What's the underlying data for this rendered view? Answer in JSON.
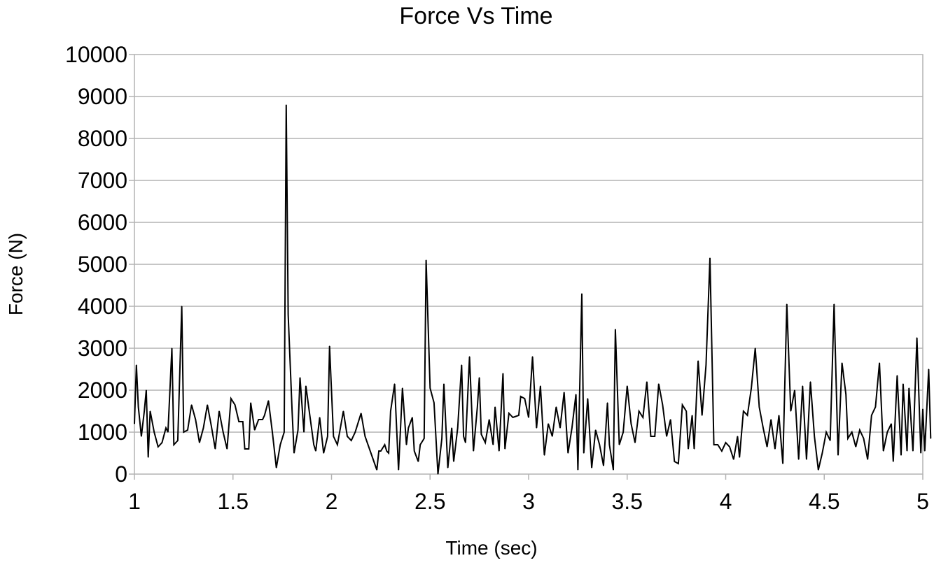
{
  "chart_data": {
    "type": "line",
    "title": "Force Vs Time",
    "xlabel": "Time (sec)",
    "ylabel": "Force (N)",
    "xlim": [
      1,
      5
    ],
    "ylim": [
      0,
      10000
    ],
    "x_ticks": [
      "1",
      "1.5",
      "2",
      "2.5",
      "3",
      "3.5",
      "4",
      "4.5",
      "5"
    ],
    "y_ticks": [
      "0",
      "1000",
      "2000",
      "3000",
      "4000",
      "5000",
      "6000",
      "7000",
      "8000",
      "9000",
      "10000"
    ],
    "grid": true,
    "legend": "none",
    "series": [
      {
        "color": "#000000",
        "points": [
          [
            1.0,
            1200
          ],
          [
            1.01,
            2600
          ],
          [
            1.02,
            1600
          ],
          [
            1.035,
            900
          ],
          [
            1.05,
            1500
          ],
          [
            1.06,
            2000
          ],
          [
            1.07,
            400
          ],
          [
            1.08,
            1500
          ],
          [
            1.1,
            1000
          ],
          [
            1.12,
            650
          ],
          [
            1.14,
            750
          ],
          [
            1.16,
            1100
          ],
          [
            1.17,
            1000
          ],
          [
            1.19,
            3000
          ],
          [
            1.2,
            700
          ],
          [
            1.22,
            800
          ],
          [
            1.24,
            4000
          ],
          [
            1.25,
            1000
          ],
          [
            1.27,
            1050
          ],
          [
            1.29,
            1650
          ],
          [
            1.31,
            1300
          ],
          [
            1.33,
            750
          ],
          [
            1.35,
            1100
          ],
          [
            1.37,
            1650
          ],
          [
            1.39,
            1150
          ],
          [
            1.41,
            600
          ],
          [
            1.43,
            1500
          ],
          [
            1.45,
            1000
          ],
          [
            1.47,
            600
          ],
          [
            1.49,
            1800
          ],
          [
            1.51,
            1650
          ],
          [
            1.53,
            1250
          ],
          [
            1.55,
            1250
          ],
          [
            1.56,
            600
          ],
          [
            1.58,
            600
          ],
          [
            1.59,
            1700
          ],
          [
            1.61,
            1050
          ],
          [
            1.63,
            1300
          ],
          [
            1.65,
            1300
          ],
          [
            1.66,
            1400
          ],
          [
            1.68,
            1750
          ],
          [
            1.7,
            1000
          ],
          [
            1.72,
            150
          ],
          [
            1.74,
            700
          ],
          [
            1.76,
            1000
          ],
          [
            1.77,
            8800
          ],
          [
            1.78,
            3800
          ],
          [
            1.8,
            1500
          ],
          [
            1.81,
            500
          ],
          [
            1.83,
            1050
          ],
          [
            1.84,
            2300
          ],
          [
            1.86,
            1000
          ],
          [
            1.87,
            2100
          ],
          [
            1.89,
            1400
          ],
          [
            1.91,
            700
          ],
          [
            1.92,
            550
          ],
          [
            1.94,
            1350
          ],
          [
            1.96,
            500
          ],
          [
            1.98,
            900
          ],
          [
            1.99,
            3050
          ],
          [
            2.01,
            900
          ],
          [
            2.03,
            700
          ],
          [
            2.06,
            1500
          ],
          [
            2.08,
            900
          ],
          [
            2.1,
            800
          ],
          [
            2.12,
            1000
          ],
          [
            2.15,
            1450
          ],
          [
            2.17,
            900
          ],
          [
            2.2,
            500
          ],
          [
            2.23,
            100
          ],
          [
            2.24,
            550
          ],
          [
            2.25,
            550
          ],
          [
            2.27,
            700
          ],
          [
            2.28,
            550
          ],
          [
            2.29,
            500
          ],
          [
            2.3,
            1500
          ],
          [
            2.32,
            2150
          ],
          [
            2.34,
            100
          ],
          [
            2.36,
            2050
          ],
          [
            2.38,
            700
          ],
          [
            2.39,
            1100
          ],
          [
            2.41,
            1350
          ],
          [
            2.42,
            550
          ],
          [
            2.44,
            300
          ],
          [
            2.45,
            700
          ],
          [
            2.47,
            850
          ],
          [
            2.48,
            5100
          ],
          [
            2.5,
            2050
          ],
          [
            2.52,
            1700
          ],
          [
            2.54,
            0
          ],
          [
            2.56,
            850
          ],
          [
            2.57,
            2150
          ],
          [
            2.59,
            150
          ],
          [
            2.61,
            1100
          ],
          [
            2.62,
            300
          ],
          [
            2.64,
            1100
          ],
          [
            2.66,
            2600
          ],
          [
            2.67,
            900
          ],
          [
            2.68,
            750
          ],
          [
            2.7,
            2800
          ],
          [
            2.72,
            550
          ],
          [
            2.74,
            1600
          ],
          [
            2.75,
            2300
          ],
          [
            2.76,
            950
          ],
          [
            2.78,
            750
          ],
          [
            2.8,
            1300
          ],
          [
            2.82,
            700
          ],
          [
            2.83,
            1600
          ],
          [
            2.85,
            550
          ],
          [
            2.87,
            2400
          ],
          [
            2.88,
            600
          ],
          [
            2.9,
            1450
          ],
          [
            2.92,
            1350
          ],
          [
            2.95,
            1400
          ],
          [
            2.96,
            1850
          ],
          [
            2.98,
            1800
          ],
          [
            3.0,
            1350
          ],
          [
            3.02,
            2800
          ],
          [
            3.04,
            1100
          ],
          [
            3.06,
            2100
          ],
          [
            3.08,
            450
          ],
          [
            3.1,
            1200
          ],
          [
            3.12,
            900
          ],
          [
            3.14,
            1600
          ],
          [
            3.16,
            1100
          ],
          [
            3.18,
            1950
          ],
          [
            3.2,
            500
          ],
          [
            3.22,
            1100
          ],
          [
            3.24,
            1900
          ],
          [
            3.25,
            100
          ],
          [
            3.27,
            4300
          ],
          [
            3.28,
            500
          ],
          [
            3.3,
            1800
          ],
          [
            3.32,
            150
          ],
          [
            3.34,
            1050
          ],
          [
            3.36,
            700
          ],
          [
            3.38,
            200
          ],
          [
            3.4,
            1700
          ],
          [
            3.41,
            700
          ],
          [
            3.43,
            100
          ],
          [
            3.44,
            3450
          ],
          [
            3.46,
            700
          ],
          [
            3.48,
            1000
          ],
          [
            3.5,
            2100
          ],
          [
            3.52,
            1200
          ],
          [
            3.54,
            750
          ],
          [
            3.56,
            1500
          ],
          [
            3.58,
            1350
          ],
          [
            3.6,
            2200
          ],
          [
            3.62,
            900
          ],
          [
            3.64,
            900
          ],
          [
            3.66,
            2150
          ],
          [
            3.68,
            1650
          ],
          [
            3.7,
            900
          ],
          [
            3.72,
            1300
          ],
          [
            3.74,
            300
          ],
          [
            3.76,
            250
          ],
          [
            3.78,
            1650
          ],
          [
            3.8,
            1500
          ],
          [
            3.81,
            600
          ],
          [
            3.83,
            1400
          ],
          [
            3.84,
            600
          ],
          [
            3.86,
            2700
          ],
          [
            3.88,
            1400
          ],
          [
            3.9,
            2600
          ],
          [
            3.92,
            5150
          ],
          [
            3.94,
            700
          ],
          [
            3.96,
            700
          ],
          [
            3.98,
            550
          ],
          [
            4.0,
            750
          ],
          [
            4.02,
            650
          ],
          [
            4.04,
            350
          ],
          [
            4.06,
            900
          ],
          [
            4.07,
            400
          ],
          [
            4.09,
            1500
          ],
          [
            4.11,
            1400
          ],
          [
            4.13,
            2050
          ],
          [
            4.15,
            3000
          ],
          [
            4.17,
            1600
          ],
          [
            4.19,
            1100
          ],
          [
            4.21,
            650
          ],
          [
            4.23,
            1300
          ],
          [
            4.25,
            600
          ],
          [
            4.27,
            1400
          ],
          [
            4.29,
            250
          ],
          [
            4.31,
            4050
          ],
          [
            4.33,
            1500
          ],
          [
            4.35,
            2000
          ],
          [
            4.37,
            350
          ],
          [
            4.39,
            2100
          ],
          [
            4.41,
            350
          ],
          [
            4.43,
            2200
          ],
          [
            4.45,
            900
          ],
          [
            4.47,
            100
          ],
          [
            4.49,
            500
          ],
          [
            4.51,
            1000
          ],
          [
            4.53,
            800
          ],
          [
            4.55,
            4050
          ],
          [
            4.57,
            450
          ],
          [
            4.59,
            2650
          ],
          [
            4.61,
            1900
          ],
          [
            4.62,
            850
          ],
          [
            4.64,
            1000
          ],
          [
            4.66,
            650
          ],
          [
            4.68,
            1050
          ],
          [
            4.7,
            850
          ],
          [
            4.72,
            350
          ],
          [
            4.74,
            1400
          ],
          [
            4.76,
            1600
          ],
          [
            4.78,
            2650
          ],
          [
            4.8,
            550
          ],
          [
            4.82,
            1000
          ],
          [
            4.84,
            1200
          ],
          [
            4.85,
            300
          ],
          [
            4.87,
            2350
          ],
          [
            4.89,
            450
          ],
          [
            4.9,
            2150
          ],
          [
            4.92,
            550
          ],
          [
            4.93,
            2050
          ],
          [
            4.95,
            550
          ],
          [
            4.97,
            3250
          ],
          [
            4.99,
            500
          ],
          [
            5.0,
            1550
          ],
          [
            5.01,
            550
          ],
          [
            5.03,
            2500
          ],
          [
            5.04,
            850
          ]
        ]
      }
    ]
  }
}
